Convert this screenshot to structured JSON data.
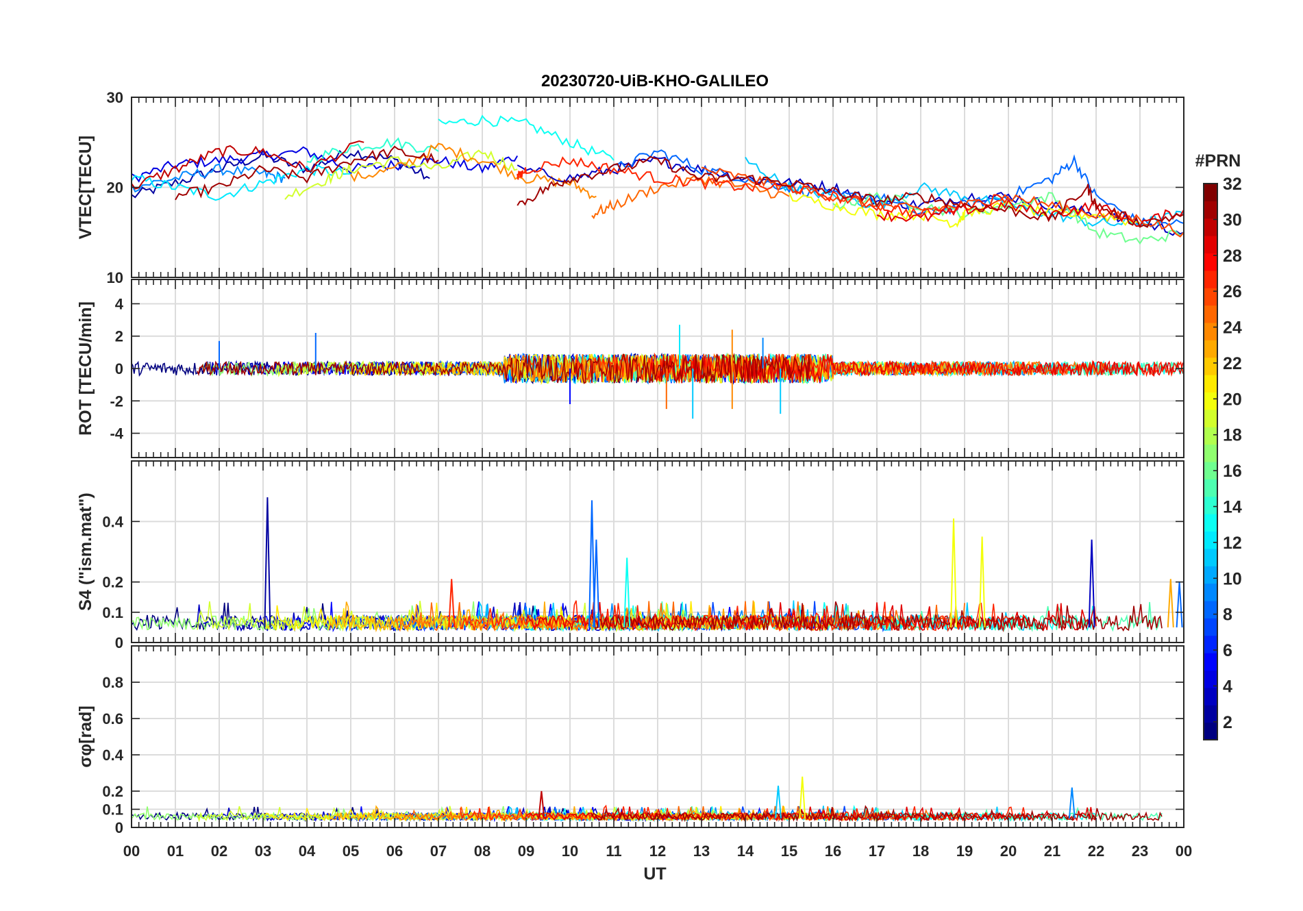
{
  "chart_data": {
    "type": "line",
    "title": "20230720-UiB-KHO-GALILEO",
    "xlabel": "UT",
    "x_tick_labels": [
      "00",
      "01",
      "02",
      "03",
      "04",
      "05",
      "06",
      "07",
      "08",
      "09",
      "10",
      "11",
      "12",
      "13",
      "14",
      "15",
      "16",
      "17",
      "18",
      "19",
      "20",
      "21",
      "22",
      "23",
      "00"
    ],
    "xlim": [
      0,
      24
    ],
    "colorbar": {
      "label": "#PRN",
      "range": [
        1,
        32
      ],
      "tick_labels": [
        "2",
        "4",
        "6",
        "8",
        "10",
        "12",
        "14",
        "16",
        "18",
        "20",
        "22",
        "24",
        "26",
        "28",
        "30",
        "32"
      ]
    },
    "panels": [
      {
        "name": "vtec",
        "ylabel": "VTEC[TECU]",
        "ylim": [
          10,
          30
        ],
        "ytick_values": [
          10,
          20,
          30
        ],
        "ytick_labels": [
          "10",
          "20",
          "30"
        ],
        "series": [
          {
            "prn": 2,
            "x": [
              0,
              1,
              2,
              3,
              4,
              5,
              6,
              6.8
            ],
            "values": [
              19,
              20.5,
              22,
              23.5,
              22,
              24,
              23,
              21
            ]
          },
          {
            "prn": 4,
            "x": [
              0,
              1,
              2,
              3,
              4,
              5,
              6,
              7,
              8,
              8.8
            ],
            "values": [
              21,
              22.5,
              23,
              23.5,
              24,
              22,
              22.5,
              23,
              22,
              23.5
            ]
          },
          {
            "prn": 9,
            "x": [
              0,
              1,
              2,
              3,
              3.5
            ],
            "values": [
              20,
              21,
              22,
              21.5,
              21
            ]
          },
          {
            "prn": 12,
            "x": [
              0,
              1,
              2,
              3,
              4,
              5
            ],
            "values": [
              21,
              20,
              19,
              20.5,
              22,
              21.5
            ]
          },
          {
            "prn": 13,
            "x": [
              7,
              8,
              9,
              10,
              11
            ],
            "values": [
              27,
              27.5,
              27,
              25,
              23
            ]
          },
          {
            "prn": 14,
            "x": [
              4,
              5,
              6,
              7
            ],
            "values": [
              23,
              24.5,
              25,
              24
            ]
          },
          {
            "prn": 19,
            "x": [
              3.5,
              4.5,
              5,
              6,
              7,
              8,
              8.8
            ],
            "values": [
              19,
              21,
              22,
              23,
              22,
              24,
              22
            ]
          },
          {
            "prn": 24,
            "x": [
              5,
              6,
              7,
              8,
              9,
              10,
              10.6
            ],
            "values": [
              21,
              22,
              24.5,
              23,
              21,
              20.5,
              19
            ]
          },
          {
            "prn": 30,
            "x": [
              0,
              1,
              2,
              3,
              4,
              5.3
            ],
            "values": [
              20,
              22,
              24,
              24,
              22,
              25
            ]
          },
          {
            "prn": 31,
            "x": [
              1,
              2,
              3,
              4,
              5,
              6,
              7
            ],
            "values": [
              19,
              20,
              22,
              21,
              23,
              24,
              23
            ]
          },
          {
            "prn": 3,
            "x": [
              8.8,
              10,
              11,
              12,
              13,
              14,
              15,
              16,
              17,
              18,
              19,
              20,
              21,
              22,
              23,
              24
            ],
            "values": [
              22,
              21,
              22,
              23,
              22,
              21,
              20.5,
              20,
              18.5,
              18,
              19,
              19,
              18,
              17,
              16,
              15
            ]
          },
          {
            "prn": 8,
            "x": [
              11,
              12,
              13,
              14,
              15,
              16,
              17,
              18,
              19,
              20,
              21,
              21.5,
              22,
              23,
              24
            ],
            "values": [
              22,
              24,
              22,
              21,
              20,
              19,
              19,
              17,
              18,
              19,
              21,
              23,
              19,
              16,
              16
            ]
          },
          {
            "prn": 11,
            "x": [
              14,
              15,
              16,
              17,
              18,
              19,
              20,
              21,
              22,
              23,
              24
            ],
            "values": [
              23,
              20,
              19,
              18,
              20,
              19,
              18,
              17,
              16,
              16,
              17
            ]
          },
          {
            "prn": 16,
            "x": [
              16,
              17,
              18,
              19,
              20,
              21,
              22,
              23,
              24
            ],
            "values": [
              18,
              19,
              18,
              17,
              18,
              19,
              15,
              14,
              15
            ]
          },
          {
            "prn": 20,
            "x": [
              15,
              16,
              17,
              18,
              18.8,
              19,
              20,
              21,
              22,
              23
            ],
            "values": [
              19,
              18,
              17,
              17,
              16,
              17,
              18,
              17,
              17,
              16
            ]
          },
          {
            "prn": 25,
            "x": [
              10.5,
              11,
              12,
              13,
              14,
              15
            ],
            "values": [
              17,
              18,
              20,
              21,
              20,
              19
            ]
          },
          {
            "prn": 26,
            "x": [
              13,
              14,
              15,
              16,
              17,
              18,
              19,
              20,
              21,
              22,
              23,
              24
            ],
            "values": [
              22,
              21,
              20,
              19,
              18,
              17.5,
              18,
              19,
              18,
              17,
              16.5,
              15
            ]
          },
          {
            "prn": 27,
            "x": [
              8.8,
              9,
              10,
              11,
              12,
              13,
              14,
              15,
              16,
              17,
              18,
              19,
              20
            ],
            "values": [
              21,
              22,
              23,
              22,
              21,
              20.5,
              20,
              20,
              19,
              18,
              17,
              18,
              19
            ]
          },
          {
            "prn": 29,
            "x": [
              17,
              18,
              19,
              20,
              21,
              22,
              23,
              24
            ],
            "values": [
              17,
              16.5,
              17.5,
              18,
              17,
              18,
              16,
              17.5
            ]
          },
          {
            "prn": 31,
            "x": [
              8.8,
              9.5,
              10,
              11,
              12,
              13,
              14,
              15,
              16,
              17,
              18,
              19,
              20,
              21,
              21.8,
              22,
              23,
              24
            ],
            "values": [
              18,
              20,
              21,
              22,
              23,
              21,
              21,
              20.5,
              19.5,
              18.5,
              19,
              18,
              17.5,
              16.5,
              20,
              18,
              16,
              17
            ]
          }
        ]
      },
      {
        "name": "rot",
        "ylabel": "ROT [TECU/min]",
        "ylim": [
          -5.5,
          5.5
        ],
        "ytick_values": [
          -4,
          -2,
          0,
          2,
          4
        ],
        "ytick_labels": [
          "-4",
          "-2",
          "0",
          "2",
          "4"
        ],
        "noise_band": 0.35,
        "spikes": [
          {
            "x": 12.5,
            "value": 2.7,
            "prn": 12
          },
          {
            "x": 12.8,
            "value": -3.1,
            "prn": 11
          },
          {
            "x": 13.7,
            "value": 2.4,
            "prn": 24
          },
          {
            "x": 13.7,
            "value": -2.5,
            "prn": 24
          },
          {
            "x": 12.2,
            "value": -2.5,
            "prn": 25
          },
          {
            "x": 14.8,
            "value": -2.8,
            "prn": 11
          },
          {
            "x": 10.0,
            "value": -2.2,
            "prn": 5
          },
          {
            "x": 4.2,
            "value": 2.2,
            "prn": 8
          },
          {
            "x": 2.0,
            "value": 1.7,
            "prn": 8
          },
          {
            "x": 14.4,
            "value": 1.9,
            "prn": 9
          }
        ]
      },
      {
        "name": "s4",
        "ylabel": "S4 (\"ism.mat\")",
        "ylim": [
          0,
          0.6
        ],
        "ytick_values": [
          0,
          0.1,
          0.2,
          0.4
        ],
        "ytick_labels": [
          "0",
          "0.1",
          "0.2",
          "0.4"
        ],
        "spikes": [
          {
            "x": 3.1,
            "value": 0.48,
            "prn": 2
          },
          {
            "x": 10.5,
            "value": 0.47,
            "prn": 8
          },
          {
            "x": 10.6,
            "value": 0.34,
            "prn": 8
          },
          {
            "x": 11.3,
            "value": 0.28,
            "prn": 13
          },
          {
            "x": 18.75,
            "value": 0.41,
            "prn": 20
          },
          {
            "x": 19.4,
            "value": 0.35,
            "prn": 20
          },
          {
            "x": 21.9,
            "value": 0.34,
            "prn": 3
          },
          {
            "x": 7.3,
            "value": 0.21,
            "prn": 27
          },
          {
            "x": 23.7,
            "value": 0.21,
            "prn": 23
          },
          {
            "x": 23.9,
            "value": 0.2,
            "prn": 8
          }
        ]
      },
      {
        "name": "sigma_phi",
        "ylabel": "σφ[rad]",
        "ylim": [
          0,
          1
        ],
        "ytick_values": [
          0,
          0.1,
          0.2,
          0.4,
          0.6,
          0.8
        ],
        "ytick_labels": [
          "0",
          "0.1",
          "0.2",
          "0.4",
          "0.6",
          "0.8"
        ],
        "spikes": [
          {
            "x": 9.35,
            "value": 0.2,
            "prn": 30
          },
          {
            "x": 14.75,
            "value": 0.23,
            "prn": 11
          },
          {
            "x": 15.3,
            "value": 0.28,
            "prn": 20
          },
          {
            "x": 21.45,
            "value": 0.22,
            "prn": 9
          }
        ]
      }
    ]
  }
}
